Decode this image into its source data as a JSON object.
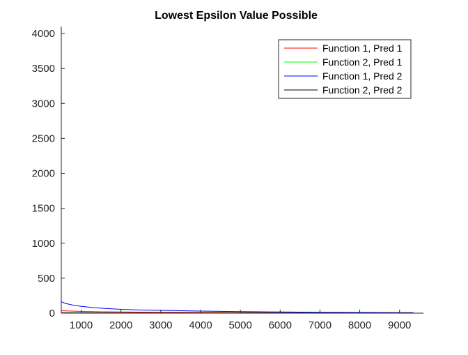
{
  "chart_data": {
    "type": "line",
    "title": "Lowest Epsilon Value Possible",
    "xlabel": "",
    "ylabel": "",
    "xlim": [
      500,
      9600
    ],
    "ylim": [
      0,
      4100
    ],
    "xticks": [
      1000,
      2000,
      3000,
      4000,
      5000,
      6000,
      7000,
      8000,
      9000
    ],
    "yticks": [
      0,
      500,
      1000,
      1500,
      2000,
      2500,
      3000,
      3500,
      4000
    ],
    "grid": false,
    "legend_position": "top-right",
    "series": [
      {
        "name": "Function 1, Pred 1",
        "color": "#ff0000",
        "x": [
          500,
          1000,
          1500,
          2000,
          2500,
          3000,
          4000,
          5000,
          6000,
          7000,
          8000,
          9000,
          9350
        ],
        "values": [
          35,
          25,
          20,
          17,
          15,
          13,
          11,
          9,
          8,
          7,
          6,
          5,
          5
        ]
      },
      {
        "name": "Function 2, Pred 1",
        "color": "#00ff00",
        "x": [
          500,
          1000,
          2000,
          3000,
          4000,
          5000,
          6000,
          7000,
          8000,
          9000,
          9350
        ],
        "values": [
          6,
          4,
          3,
          3,
          2,
          2,
          2,
          2,
          1,
          1,
          1
        ]
      },
      {
        "name": "Function 1, Pred 2",
        "color": "#0000ff",
        "x": [
          500,
          600,
          800,
          1000,
          1300,
          1600,
          2000,
          2500,
          3000,
          3500,
          4000,
          5000,
          6000,
          7000,
          8000,
          9000,
          9350
        ],
        "values": [
          165,
          140,
          115,
          98,
          80,
          68,
          55,
          45,
          40,
          35,
          30,
          22,
          17,
          13,
          10,
          8,
          7
        ]
      },
      {
        "name": "Function 2, Pred 2",
        "color": "#000000",
        "x": [
          500,
          1000,
          2000,
          3000,
          4000,
          5000,
          6000,
          7000,
          8000,
          9000,
          9350
        ],
        "values": [
          5,
          5,
          4,
          4,
          3,
          3,
          3,
          2,
          2,
          2,
          2
        ]
      }
    ]
  }
}
